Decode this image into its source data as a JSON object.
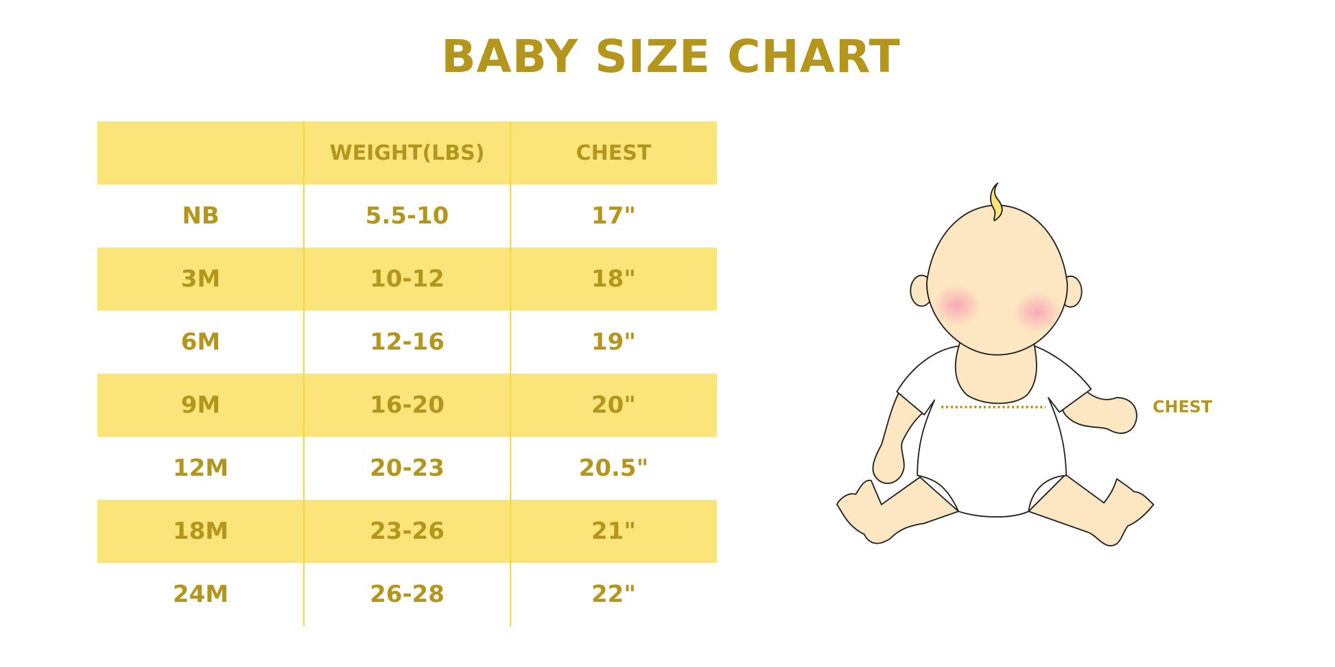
{
  "title": "BABY SIZE CHART",
  "colors": {
    "text": "#b5961c",
    "band": "#fbe47a",
    "divider": "#f9d73a"
  },
  "table": {
    "headers": [
      "",
      "WEIGHT(LBS)",
      "CHEST"
    ],
    "rows": [
      [
        "NB",
        "5.5-10",
        "17\""
      ],
      [
        "3M",
        "10-12",
        "18\""
      ],
      [
        "6M",
        "12-16",
        "19\""
      ],
      [
        "9M",
        "16-20",
        "20\""
      ],
      [
        "12M",
        "20-23",
        "20.5\""
      ],
      [
        "18M",
        "23-26",
        "21\""
      ],
      [
        "24M",
        "26-28",
        "22\""
      ]
    ]
  },
  "illustration": {
    "chest_label": "CHEST"
  }
}
